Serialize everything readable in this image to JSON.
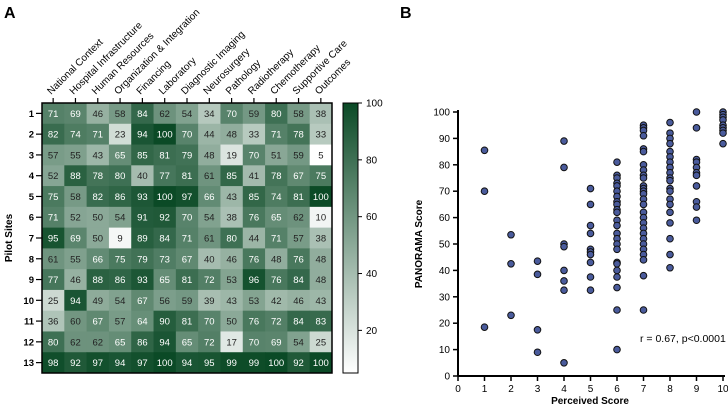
{
  "chart_data": [
    {
      "type": "heatmap",
      "panel_label": "A",
      "ylabel": "Pilot Sites",
      "columns": [
        "National Context",
        "Hospital Infrastructure",
        "Human Resources",
        "Organization & Integration",
        "Financing",
        "Laboratory",
        "Diagnostic Imaging",
        "Neurosurgery",
        "Pathology",
        "Radiotherapy",
        "Chemotherapy",
        "Supportive Care",
        "Outcomes"
      ],
      "rows": [
        "1",
        "2",
        "3",
        "4",
        "5",
        "6",
        "7",
        "8",
        "9",
        "10",
        "11",
        "12",
        "13"
      ],
      "values": [
        [
          71,
          69,
          46,
          58,
          84,
          62,
          54,
          34,
          70,
          59,
          80,
          58,
          38
        ],
        [
          82,
          74,
          71,
          23,
          94,
          100,
          70,
          44,
          48,
          33,
          71,
          78,
          33
        ],
        [
          57,
          55,
          43,
          65,
          85,
          81,
          79,
          48,
          19,
          70,
          51,
          59,
          5
        ],
        [
          52,
          88,
          78,
          80,
          40,
          77,
          81,
          61,
          85,
          41,
          78,
          67,
          75
        ],
        [
          75,
          58,
          82,
          86,
          93,
          100,
          97,
          66,
          43,
          85,
          74,
          81,
          100
        ],
        [
          71,
          52,
          50,
          54,
          91,
          92,
          70,
          54,
          38,
          76,
          65,
          62,
          10
        ],
        [
          95,
          69,
          50,
          9,
          89,
          84,
          71,
          61,
          80,
          44,
          71,
          57,
          38
        ],
        [
          61,
          55,
          66,
          75,
          79,
          73,
          67,
          40,
          46,
          76,
          48,
          76,
          48
        ],
        [
          77,
          46,
          88,
          86,
          93,
          65,
          81,
          72,
          53,
          96,
          76,
          84,
          48
        ],
        [
          25,
          94,
          49,
          54,
          67,
          56,
          59,
          39,
          43,
          53,
          42,
          46,
          43
        ],
        [
          36,
          60,
          67,
          57,
          64,
          90,
          81,
          70,
          50,
          76,
          72,
          84,
          83
        ],
        [
          80,
          62,
          62,
          65,
          86,
          94,
          65,
          72,
          17,
          70,
          69,
          54,
          25
        ],
        [
          98,
          92,
          97,
          94,
          97,
          100,
          94,
          95,
          99,
          99,
          100,
          92,
          100
        ]
      ],
      "colorbar": {
        "ticks": [
          "100",
          "80",
          "60",
          "40",
          "20"
        ],
        "tick_values": [
          100,
          80,
          60,
          40,
          20
        ],
        "range": [
          5,
          100
        ],
        "color_low": "#ffffff",
        "color_high": "#0b4a26"
      }
    },
    {
      "type": "scatter",
      "panel_label": "B",
      "xlabel": "Perceived Score",
      "ylabel": "PANORAMA Score",
      "xlim": [
        0,
        10
      ],
      "ylim": [
        0,
        100
      ],
      "xticks": [
        "0",
        "1",
        "2",
        "3",
        "4",
        "5",
        "6",
        "7",
        "8",
        "9",
        "10"
      ],
      "yticks": [
        "0",
        "10",
        "20",
        "30",
        "40",
        "50",
        "60",
        "70",
        "80",
        "90",
        "100"
      ],
      "annotation": "r = 0.67, p<0.0001",
      "point_color": "#4a5b9c",
      "points": [
        {
          "x": 1,
          "y": [
            85.5,
            70,
            18.5
          ]
        },
        {
          "x": 2,
          "y": [
            53.5,
            42.5,
            23
          ]
        },
        {
          "x": 3,
          "y": [
            43.5,
            38.5,
            17.5,
            9
          ]
        },
        {
          "x": 4,
          "y": [
            89,
            79,
            50,
            49,
            40,
            36,
            32.5,
            5
          ]
        },
        {
          "x": 5,
          "y": [
            71,
            65,
            57,
            54,
            48,
            47,
            46,
            43,
            37.5,
            32.5
          ]
        },
        {
          "x": 6,
          "y": [
            81,
            76,
            75,
            73,
            72,
            70,
            68,
            66,
            65,
            63,
            62,
            59,
            57,
            54,
            52,
            50,
            48,
            43,
            42.5,
            40,
            37.5,
            33.5,
            25,
            10
          ]
        },
        {
          "x": 7,
          "y": [
            95,
            94,
            93,
            91,
            86,
            85,
            80,
            78,
            76,
            75,
            72,
            71,
            70,
            69,
            67,
            65,
            62,
            60,
            58,
            56,
            54,
            52,
            50,
            48,
            46,
            44,
            38,
            25
          ]
        },
        {
          "x": 8,
          "y": [
            96,
            92,
            90,
            88,
            85,
            83,
            81,
            79,
            77,
            75,
            74,
            71,
            70,
            67,
            65,
            62,
            58,
            52,
            46,
            41
          ]
        },
        {
          "x": 9,
          "y": [
            100,
            94,
            82,
            81,
            79,
            77,
            76,
            72,
            66,
            64,
            59
          ]
        },
        {
          "x": 10,
          "y": [
            100,
            99,
            98,
            97,
            95,
            94,
            93,
            92,
            88
          ]
        }
      ]
    }
  ]
}
